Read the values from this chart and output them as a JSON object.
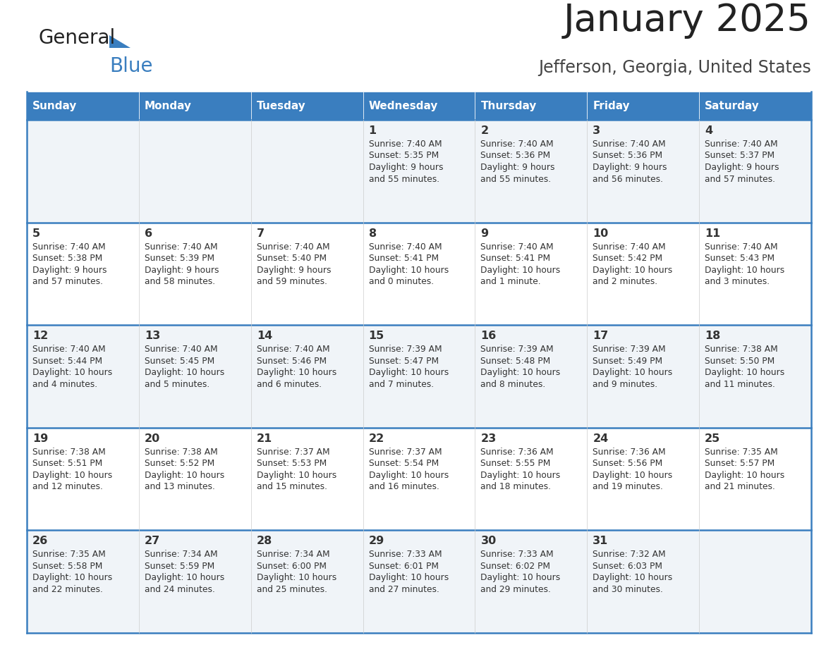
{
  "title": "January 2025",
  "subtitle": "Jefferson, Georgia, United States",
  "header_color": "#3a7ebf",
  "header_text_color": "#ffffff",
  "row_color_odd": "#f0f4f8",
  "row_color_even": "#ffffff",
  "border_color": "#3a7ebf",
  "text_color": "#333333",
  "days_of_week": [
    "Sunday",
    "Monday",
    "Tuesday",
    "Wednesday",
    "Thursday",
    "Friday",
    "Saturday"
  ],
  "calendar_data": [
    [
      {
        "day": "",
        "sunrise": "",
        "sunset": "",
        "daylight": ""
      },
      {
        "day": "",
        "sunrise": "",
        "sunset": "",
        "daylight": ""
      },
      {
        "day": "",
        "sunrise": "",
        "sunset": "",
        "daylight": ""
      },
      {
        "day": "1",
        "sunrise": "7:40 AM",
        "sunset": "5:35 PM",
        "daylight": "9 hours and 55 minutes."
      },
      {
        "day": "2",
        "sunrise": "7:40 AM",
        "sunset": "5:36 PM",
        "daylight": "9 hours and 55 minutes."
      },
      {
        "day": "3",
        "sunrise": "7:40 AM",
        "sunset": "5:36 PM",
        "daylight": "9 hours and 56 minutes."
      },
      {
        "day": "4",
        "sunrise": "7:40 AM",
        "sunset": "5:37 PM",
        "daylight": "9 hours and 57 minutes."
      }
    ],
    [
      {
        "day": "5",
        "sunrise": "7:40 AM",
        "sunset": "5:38 PM",
        "daylight": "9 hours and 57 minutes."
      },
      {
        "day": "6",
        "sunrise": "7:40 AM",
        "sunset": "5:39 PM",
        "daylight": "9 hours and 58 minutes."
      },
      {
        "day": "7",
        "sunrise": "7:40 AM",
        "sunset": "5:40 PM",
        "daylight": "9 hours and 59 minutes."
      },
      {
        "day": "8",
        "sunrise": "7:40 AM",
        "sunset": "5:41 PM",
        "daylight": "10 hours and 0 minutes."
      },
      {
        "day": "9",
        "sunrise": "7:40 AM",
        "sunset": "5:41 PM",
        "daylight": "10 hours and 1 minute."
      },
      {
        "day": "10",
        "sunrise": "7:40 AM",
        "sunset": "5:42 PM",
        "daylight": "10 hours and 2 minutes."
      },
      {
        "day": "11",
        "sunrise": "7:40 AM",
        "sunset": "5:43 PM",
        "daylight": "10 hours and 3 minutes."
      }
    ],
    [
      {
        "day": "12",
        "sunrise": "7:40 AM",
        "sunset": "5:44 PM",
        "daylight": "10 hours and 4 minutes."
      },
      {
        "day": "13",
        "sunrise": "7:40 AM",
        "sunset": "5:45 PM",
        "daylight": "10 hours and 5 minutes."
      },
      {
        "day": "14",
        "sunrise": "7:40 AM",
        "sunset": "5:46 PM",
        "daylight": "10 hours and 6 minutes."
      },
      {
        "day": "15",
        "sunrise": "7:39 AM",
        "sunset": "5:47 PM",
        "daylight": "10 hours and 7 minutes."
      },
      {
        "day": "16",
        "sunrise": "7:39 AM",
        "sunset": "5:48 PM",
        "daylight": "10 hours and 8 minutes."
      },
      {
        "day": "17",
        "sunrise": "7:39 AM",
        "sunset": "5:49 PM",
        "daylight": "10 hours and 9 minutes."
      },
      {
        "day": "18",
        "sunrise": "7:38 AM",
        "sunset": "5:50 PM",
        "daylight": "10 hours and 11 minutes."
      }
    ],
    [
      {
        "day": "19",
        "sunrise": "7:38 AM",
        "sunset": "5:51 PM",
        "daylight": "10 hours and 12 minutes."
      },
      {
        "day": "20",
        "sunrise": "7:38 AM",
        "sunset": "5:52 PM",
        "daylight": "10 hours and 13 minutes."
      },
      {
        "day": "21",
        "sunrise": "7:37 AM",
        "sunset": "5:53 PM",
        "daylight": "10 hours and 15 minutes."
      },
      {
        "day": "22",
        "sunrise": "7:37 AM",
        "sunset": "5:54 PM",
        "daylight": "10 hours and 16 minutes."
      },
      {
        "day": "23",
        "sunrise": "7:36 AM",
        "sunset": "5:55 PM",
        "daylight": "10 hours and 18 minutes."
      },
      {
        "day": "24",
        "sunrise": "7:36 AM",
        "sunset": "5:56 PM",
        "daylight": "10 hours and 19 minutes."
      },
      {
        "day": "25",
        "sunrise": "7:35 AM",
        "sunset": "5:57 PM",
        "daylight": "10 hours and 21 minutes."
      }
    ],
    [
      {
        "day": "26",
        "sunrise": "7:35 AM",
        "sunset": "5:58 PM",
        "daylight": "10 hours and 22 minutes."
      },
      {
        "day": "27",
        "sunrise": "7:34 AM",
        "sunset": "5:59 PM",
        "daylight": "10 hours and 24 minutes."
      },
      {
        "day": "28",
        "sunrise": "7:34 AM",
        "sunset": "6:00 PM",
        "daylight": "10 hours and 25 minutes."
      },
      {
        "day": "29",
        "sunrise": "7:33 AM",
        "sunset": "6:01 PM",
        "daylight": "10 hours and 27 minutes."
      },
      {
        "day": "30",
        "sunrise": "7:33 AM",
        "sunset": "6:02 PM",
        "daylight": "10 hours and 29 minutes."
      },
      {
        "day": "31",
        "sunrise": "7:32 AM",
        "sunset": "6:03 PM",
        "daylight": "10 hours and 30 minutes."
      },
      {
        "day": "",
        "sunrise": "",
        "sunset": "",
        "daylight": ""
      }
    ]
  ]
}
